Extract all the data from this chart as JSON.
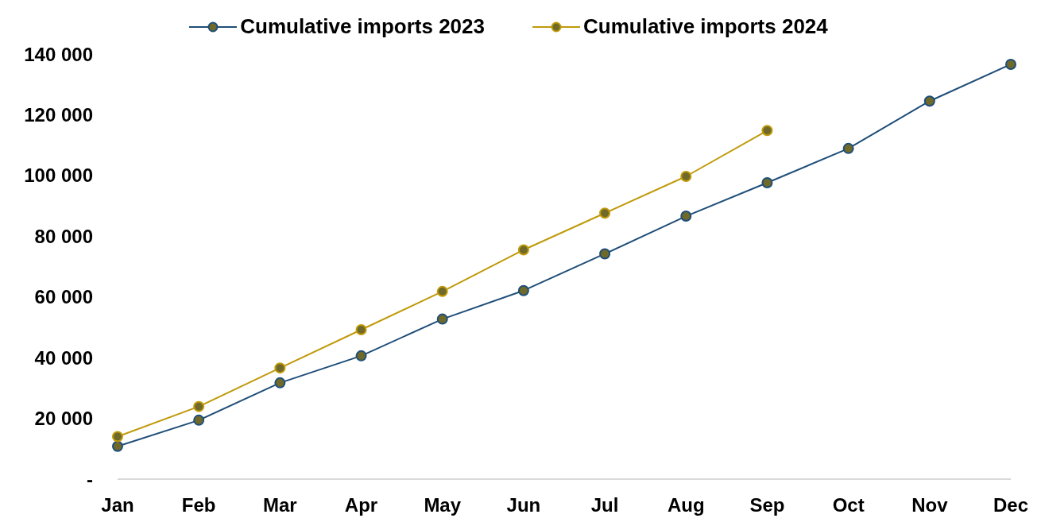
{
  "chart_data": {
    "type": "line",
    "categories": [
      "Jan",
      "Feb",
      "Mar",
      "Apr",
      "May",
      "Jun",
      "Jul",
      "Aug",
      "Sep",
      "Oct",
      "Nov",
      "Dec"
    ],
    "series": [
      {
        "name": "Cumulative imports 2023",
        "color": "#1f4e79",
        "values": [
          10800,
          19400,
          31700,
          40600,
          52700,
          62100,
          74200,
          86600,
          97600,
          108900,
          124500,
          136600
        ]
      },
      {
        "name": "Cumulative imports 2024",
        "color": "#c09a0a",
        "values": [
          14000,
          23900,
          36600,
          49200,
          61800,
          75500,
          87600,
          99700,
          114800,
          null,
          null,
          null
        ]
      }
    ],
    "ylim": [
      0,
      140000
    ],
    "yticks": [
      {
        "value": 0,
        "label": "-"
      },
      {
        "value": 20000,
        "label": "20 000"
      },
      {
        "value": 40000,
        "label": "40 000"
      },
      {
        "value": 60000,
        "label": "60 000"
      },
      {
        "value": 80000,
        "label": "80 000"
      },
      {
        "value": 100000,
        "label": "100 000"
      },
      {
        "value": 120000,
        "label": "120 000"
      },
      {
        "value": 140000,
        "label": "140 000"
      }
    ],
    "grid": false,
    "legend": "top",
    "marker": "circle",
    "line_style": "solid"
  }
}
